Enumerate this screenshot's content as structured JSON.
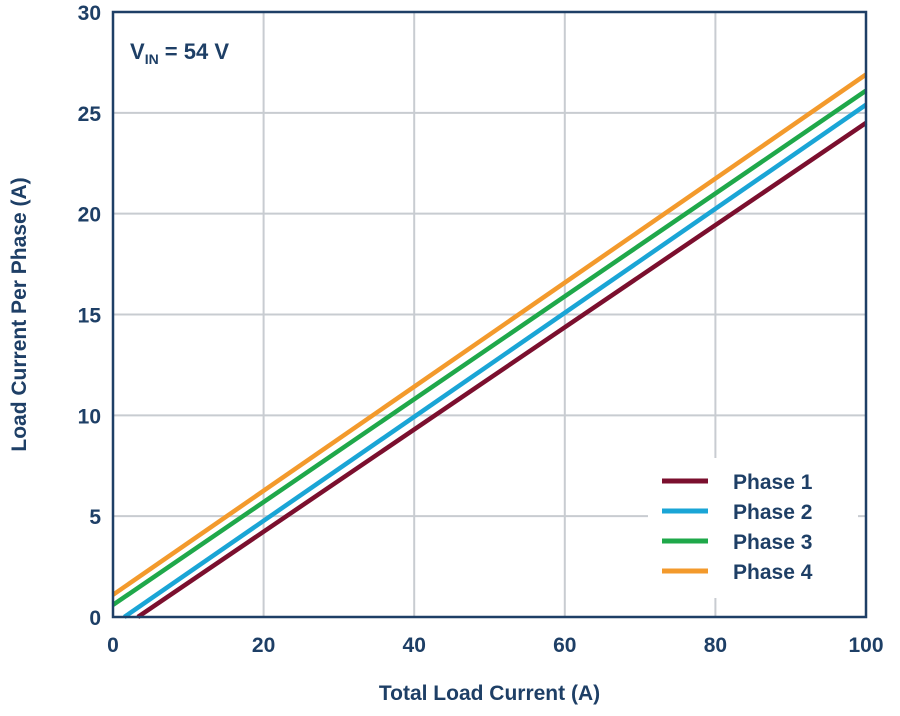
{
  "chart_data": {
    "type": "line",
    "xlabel": "Total Load Current (A)",
    "ylabel": "Load Current Per Phase (A)",
    "xlim": [
      0,
      100
    ],
    "ylim": [
      0,
      30
    ],
    "x_ticks": [
      0,
      20,
      40,
      60,
      80,
      100
    ],
    "y_ticks": [
      0,
      5,
      10,
      15,
      20,
      25,
      30
    ],
    "grid": true,
    "legend_position": "bottom-right",
    "annotation": {
      "main": "V",
      "subscript": "IN",
      "rest": " = 54 V"
    },
    "colors": {
      "axis_text": "#1e3f66",
      "frame": "#1e3f66",
      "grid": "#c8ccd1"
    },
    "series": [
      {
        "name": "Phase 1",
        "color": "#7b0f2e",
        "x": [
          3.3,
          100
        ],
        "y": [
          0,
          24.5
        ]
      },
      {
        "name": "Phase 2",
        "color": "#1aa5d6",
        "x": [
          1.5,
          100
        ],
        "y": [
          0,
          25.4
        ]
      },
      {
        "name": "Phase 3",
        "color": "#1fa84a",
        "x": [
          0,
          100
        ],
        "y": [
          0.6,
          26.1
        ]
      },
      {
        "name": "Phase 4",
        "color": "#f39a2c",
        "x": [
          0,
          100
        ],
        "y": [
          1.1,
          26.9
        ]
      }
    ]
  }
}
